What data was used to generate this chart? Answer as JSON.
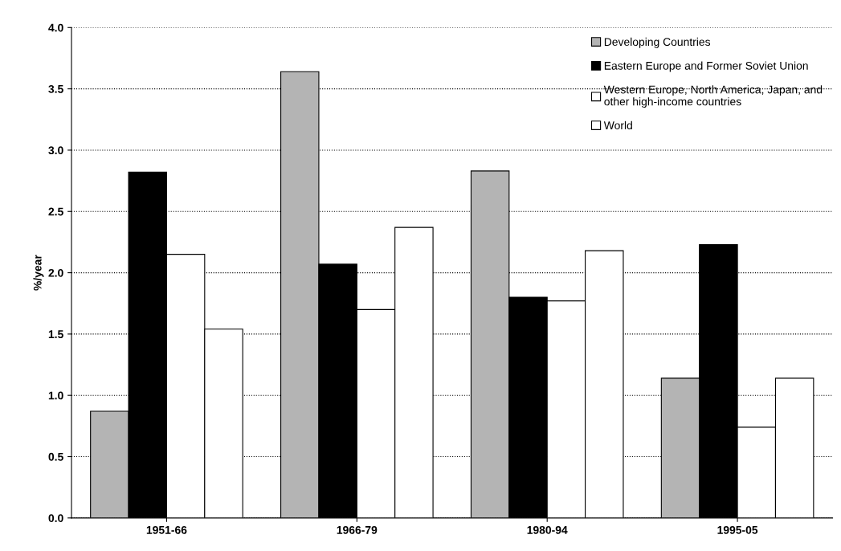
{
  "chart_data": {
    "type": "bar",
    "ylabel": "%/year",
    "categories": [
      "1951-66",
      "1966-79",
      "1980-94",
      "1995-05"
    ],
    "series": [
      {
        "name": "Developing Countries",
        "color": "#b4b4b4",
        "values": [
          0.87,
          3.64,
          2.83,
          1.14
        ]
      },
      {
        "name": "Eastern Europe and Former Soviet Union",
        "color": "#000000",
        "values": [
          2.82,
          2.07,
          1.8,
          2.23
        ]
      },
      {
        "name": "Western Europe, North America, Japan, and\nother high-income countries",
        "color": "#ffffff",
        "values": [
          2.15,
          1.7,
          1.77,
          0.74
        ]
      },
      {
        "name": "World",
        "color": "#ffffff",
        "values": [
          1.54,
          2.37,
          2.18,
          1.14
        ]
      }
    ],
    "ylim": [
      0,
      4
    ],
    "yticks": [
      {
        "value": 0,
        "label": "0.0"
      },
      {
        "value": 0.5,
        "label": "0.5"
      },
      {
        "value": 1,
        "label": "1.0"
      },
      {
        "value": 1.5,
        "label": "1.5"
      },
      {
        "value": 2,
        "label": "2.0"
      },
      {
        "value": 2.5,
        "label": "2.5"
      },
      {
        "value": 3,
        "label": "3.0"
      },
      {
        "value": 3.5,
        "label": "3.5"
      },
      {
        "value": 4,
        "label": "4.0"
      }
    ],
    "grid": "y",
    "legend": "top right"
  }
}
